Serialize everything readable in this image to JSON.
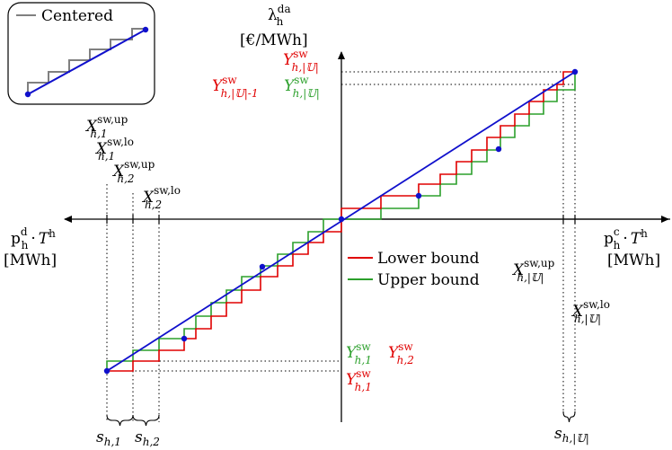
{
  "colors": {
    "lower_bound": "#e00000",
    "upper_bound": "#2ca02c",
    "centered": "#0000cc",
    "step": "#808080",
    "axis": "#000000"
  },
  "inset": {
    "legend_label": "Centered"
  },
  "legend": {
    "lower": "Lower bound",
    "upper": "Upper bound"
  },
  "y_axis": {
    "symbol": "λ",
    "sub": "h",
    "sup": "da",
    "unit": "[€/MWh]"
  },
  "x_axis_right": {
    "symbol": "p",
    "sub": "h",
    "sup": "c",
    "dot": "·",
    "T": "T",
    "Tsup": "h",
    "unit": "[MWh]"
  },
  "x_axis_left": {
    "symbol": "p",
    "sub": "h",
    "sup": "d",
    "dot": "·",
    "T": "T",
    "Tsup": "h",
    "unit": "[MWh]"
  },
  "top_left_labels": {
    "x1_up": {
      "main": "X",
      "sup": "sw,up",
      "sub": "h,1"
    },
    "x1_lo": {
      "main": "X",
      "sup": "sw,lo",
      "sub": "h,1"
    },
    "x2_up": {
      "main": "X",
      "sup": "sw,up",
      "sub": "h,2"
    },
    "x2_lo": {
      "main": "X",
      "sup": "sw,lo",
      "sub": "h,2"
    }
  },
  "right_labels": {
    "xu_up": {
      "main": "X",
      "sup": "sw,up",
      "sub": "h,|𝕌|"
    },
    "xu_lo": {
      "main": "X",
      "sup": "sw,lo",
      "sub": "h,|𝕌|"
    }
  },
  "y_labels_top": {
    "yu_red": {
      "main": "Y",
      "sup": "sw",
      "sub": "h,|𝕌|"
    },
    "yu1_red": {
      "main": "Y",
      "sup": "sw",
      "sub": "h,|𝕌|-1"
    },
    "yu_green": {
      "main": "Y",
      "sup": "sw",
      "sub": "h,|𝕌|"
    }
  },
  "y_labels_bottom": {
    "y1_green": {
      "main": "Y",
      "sup": "sw",
      "sub": "h,1"
    },
    "y2_red": {
      "main": "Y",
      "sup": "sw",
      "sub": "h,2"
    },
    "y1_red": {
      "main": "Y",
      "sup": "sw",
      "sub": "h,1"
    }
  },
  "s_labels": {
    "s1": {
      "main": "s",
      "sub": "h,1"
    },
    "s2": {
      "main": "s",
      "sub": "h,2"
    },
    "su": {
      "main": "s",
      "sub": "h,|𝕌|"
    }
  }
}
